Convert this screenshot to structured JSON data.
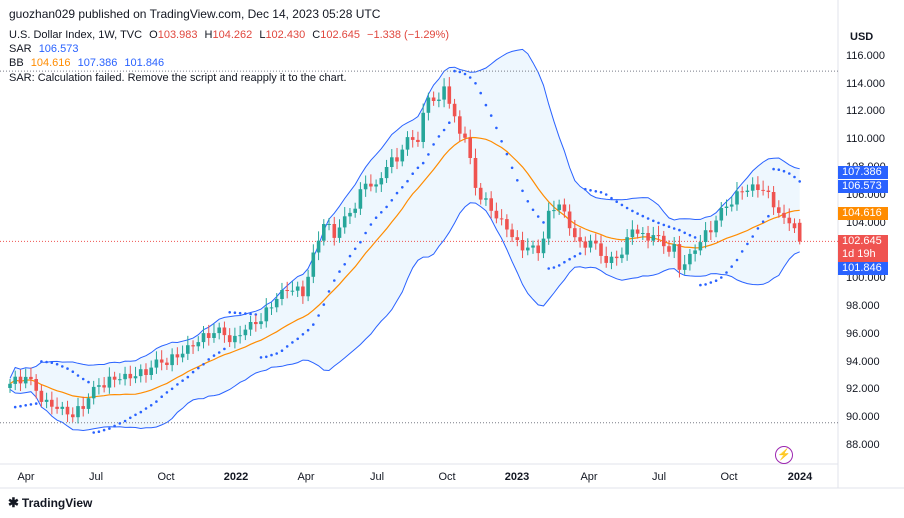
{
  "publisher": "guozhan029 published on TradingView.com, Dec 14, 2023 05:28 UTC",
  "legend": {
    "symbol": "U.S. Dollar Index, 1W, TVC",
    "o_label": "O",
    "o": "103.983",
    "h_label": "H",
    "h": "104.262",
    "l_label": "L",
    "l": "102.430",
    "c_label": "C",
    "c": "102.645",
    "change": "−1.338 (−1.29%)",
    "sar_label": "SAR",
    "sar": "106.573",
    "bb_label": "BB",
    "bb_mid": "104.616",
    "bb_up": "107.386",
    "bb_low": "101.846",
    "error": "SAR: Calculation failed. Remove the script and reapply it to the chart."
  },
  "currency": "USD",
  "price_tags": {
    "bb_up": "107.386",
    "sar": "106.573",
    "bb_mid": "104.616",
    "close": "102.645",
    "countdown": "1d 19h",
    "bb_low": "101.846"
  },
  "colors": {
    "up": "#26a69a",
    "down": "#ef5350",
    "bb_mid": "#ff8c00",
    "bb_band": "#2962ff",
    "bb_fill": "#e3f2fd",
    "sar": "#2962ff"
  },
  "brand": "TradingView",
  "chart_data": {
    "type": "candlestick",
    "timeframe": "1W",
    "x_ticks": [
      "Apr",
      "Jul",
      "Oct",
      "2022",
      "Apr",
      "Jul",
      "Oct",
      "2023",
      "Apr",
      "Jul",
      "Oct",
      "2024"
    ],
    "y_ticks": [
      "88.000",
      "90.000",
      "92.000",
      "94.000",
      "96.000",
      "98.000",
      "100.000",
      "102.000",
      "104.000",
      "106.000",
      "108.000",
      "110.000",
      "112.000",
      "114.000",
      "116.000"
    ],
    "ylim": [
      87.2,
      117.2
    ],
    "close_keypoints": [
      [
        0,
        92.4
      ],
      [
        3,
        92.9
      ],
      [
        5,
        91.9
      ],
      [
        7,
        90.9
      ],
      [
        9,
        90.6
      ],
      [
        12,
        90.0
      ],
      [
        14,
        90.9
      ],
      [
        17,
        92.3
      ],
      [
        20,
        92.7
      ],
      [
        23,
        92.8
      ],
      [
        25,
        93.1
      ],
      [
        28,
        93.8
      ],
      [
        32,
        94.3
      ],
      [
        35,
        95.1
      ],
      [
        38,
        96.0
      ],
      [
        40,
        96.1
      ],
      [
        43,
        95.5
      ],
      [
        45,
        96.3
      ],
      [
        48,
        96.9
      ],
      [
        50,
        98.2
      ],
      [
        52,
        98.8
      ],
      [
        54,
        99.4
      ],
      [
        56,
        98.7
      ],
      [
        58,
        101.5
      ],
      [
        60,
        103.9
      ],
      [
        62,
        103.2
      ],
      [
        64,
        104.1
      ],
      [
        66,
        105.3
      ],
      [
        68,
        106.8
      ],
      [
        70,
        106.4
      ],
      [
        72,
        108.0
      ],
      [
        74,
        108.7
      ],
      [
        76,
        109.8
      ],
      [
        78,
        110.1
      ],
      [
        80,
        113.0
      ],
      [
        82,
        112.5
      ],
      [
        83,
        113.8
      ],
      [
        85,
        111.3
      ],
      [
        87,
        110.1
      ],
      [
        89,
        106.5
      ],
      [
        91,
        105.4
      ],
      [
        93,
        104.3
      ],
      [
        95,
        103.5
      ],
      [
        97,
        102.4
      ],
      [
        99,
        102.2
      ],
      [
        101,
        101.8
      ],
      [
        103,
        104.5
      ],
      [
        105,
        105.3
      ],
      [
        107,
        103.6
      ],
      [
        109,
        102.3
      ],
      [
        111,
        102.7
      ],
      [
        113,
        101.6
      ],
      [
        115,
        101.2
      ],
      [
        117,
        101.7
      ],
      [
        119,
        103.5
      ],
      [
        121,
        102.9
      ],
      [
        123,
        103.1
      ],
      [
        125,
        102.3
      ],
      [
        127,
        102.1
      ],
      [
        128,
        100.6
      ],
      [
        130,
        101.4
      ],
      [
        132,
        102.6
      ],
      [
        134,
        103.6
      ],
      [
        136,
        104.7
      ],
      [
        138,
        105.6
      ],
      [
        140,
        106.2
      ],
      [
        142,
        106.4
      ],
      [
        144,
        106.3
      ],
      [
        146,
        105.4
      ],
      [
        148,
        104.0
      ],
      [
        150,
        103.9
      ],
      [
        151,
        102.645
      ]
    ],
    "last_bar": {
      "open": 103.983,
      "high": 104.262,
      "low": 102.43,
      "close": 102.645
    },
    "indicators": {
      "SAR": {
        "last": 106.573
      },
      "BB": {
        "mid": 104.616,
        "upper": 107.386,
        "lower": 101.846
      }
    },
    "horizontal_lines": [
      114.9,
      89.6
    ]
  }
}
